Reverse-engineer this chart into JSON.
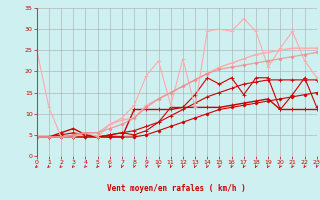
{
  "xlabel": "Vent moyen/en rafales ( km/h )",
  "xlim": [
    0,
    23
  ],
  "ylim": [
    0,
    35
  ],
  "background_color": "#cff0f0",
  "grid_color": "#aaaaaa",
  "tick_label_color": "#cc0000",
  "axis_label_color": "#cc0000",
  "series": [
    {
      "x": [
        0,
        1,
        2,
        3,
        4,
        5,
        6,
        7,
        8,
        9,
        10,
        11,
        12,
        13,
        14,
        15,
        16,
        17,
        18,
        19,
        20,
        21,
        22,
        23
      ],
      "y": [
        4.5,
        4.5,
        4.5,
        4.5,
        4.5,
        4.5,
        4.5,
        4.5,
        4.5,
        5.0,
        6.0,
        7.0,
        8.0,
        9.0,
        10.0,
        11.0,
        11.5,
        12.0,
        12.5,
        13.0,
        13.5,
        14.0,
        14.5,
        15.0
      ],
      "color": "#cc0000",
      "alpha": 1.0,
      "linewidth": 0.8,
      "marker": "D",
      "markersize": 1.5
    },
    {
      "x": [
        0,
        1,
        2,
        3,
        4,
        5,
        6,
        7,
        8,
        9,
        10,
        11,
        12,
        13,
        14,
        15,
        16,
        17,
        18,
        19,
        20,
        21,
        22,
        23
      ],
      "y": [
        4.5,
        4.5,
        4.5,
        4.5,
        4.5,
        4.5,
        5.0,
        5.5,
        6.0,
        7.0,
        8.0,
        9.5,
        11.0,
        12.5,
        14.0,
        15.0,
        16.0,
        17.0,
        17.5,
        18.0,
        18.0,
        18.0,
        18.0,
        18.0
      ],
      "color": "#cc0000",
      "alpha": 1.0,
      "linewidth": 0.8,
      "marker": "+",
      "markersize": 3
    },
    {
      "x": [
        0,
        1,
        2,
        3,
        4,
        5,
        6,
        7,
        8,
        9,
        10,
        11,
        12,
        13,
        14,
        15,
        16,
        17,
        18,
        19,
        20,
        21,
        22,
        23
      ],
      "y": [
        4.5,
        4.5,
        5.0,
        5.5,
        5.0,
        4.5,
        5.0,
        5.5,
        5.0,
        6.0,
        8.0,
        11.5,
        11.5,
        14.5,
        18.5,
        17.0,
        18.5,
        14.5,
        18.5,
        18.5,
        11.0,
        14.5,
        18.5,
        11.5
      ],
      "color": "#cc0000",
      "alpha": 1.0,
      "linewidth": 0.8,
      "marker": "+",
      "markersize": 3
    },
    {
      "x": [
        0,
        1,
        2,
        3,
        4,
        5,
        6,
        7,
        8,
        9,
        10,
        11,
        12,
        13,
        14,
        15,
        16,
        17,
        18,
        19,
        20,
        21,
        22,
        23
      ],
      "y": [
        4.5,
        4.5,
        5.5,
        6.5,
        5.0,
        4.5,
        4.5,
        4.5,
        11.0,
        11.0,
        11.0,
        11.0,
        11.5,
        11.5,
        11.5,
        11.5,
        12.0,
        12.5,
        13.0,
        13.5,
        11.0,
        11.0,
        11.0,
        11.0
      ],
      "color": "#cc0000",
      "alpha": 1.0,
      "linewidth": 1.0,
      "marker": "+",
      "markersize": 3
    },
    {
      "x": [
        0,
        1,
        2,
        3,
        4,
        5,
        6,
        7,
        8,
        9,
        10,
        11,
        12,
        13,
        14,
        15,
        16,
        17,
        18,
        19,
        20,
        21,
        22,
        23
      ],
      "y": [
        25.0,
        11.5,
        4.5,
        4.5,
        5.5,
        4.5,
        7.5,
        9.0,
        12.0,
        19.0,
        22.5,
        12.0,
        23.0,
        11.5,
        29.5,
        30.0,
        29.5,
        32.5,
        29.5,
        21.0,
        25.5,
        29.5,
        22.5,
        18.5
      ],
      "color": "#ffaaaa",
      "alpha": 1.0,
      "linewidth": 0.8,
      "marker": "+",
      "markersize": 3
    },
    {
      "x": [
        0,
        1,
        2,
        3,
        4,
        5,
        6,
        7,
        8,
        9,
        10,
        11,
        12,
        13,
        14,
        15,
        16,
        17,
        18,
        19,
        20,
        21,
        22,
        23
      ],
      "y": [
        4.5,
        4.5,
        4.5,
        5.0,
        5.5,
        5.5,
        7.5,
        8.5,
        9.0,
        12.0,
        13.5,
        15.0,
        16.5,
        18.0,
        19.5,
        21.0,
        22.0,
        23.0,
        24.0,
        24.5,
        25.0,
        25.5,
        25.5,
        25.5
      ],
      "color": "#ffaaaa",
      "alpha": 1.0,
      "linewidth": 1.0,
      "marker": "+",
      "markersize": 3
    },
    {
      "x": [
        0,
        1,
        2,
        3,
        4,
        5,
        6,
        7,
        8,
        9,
        10,
        11,
        12,
        13,
        14,
        15,
        16,
        17,
        18,
        19,
        20,
        21,
        22,
        23
      ],
      "y": [
        4.5,
        4.5,
        4.5,
        5.0,
        5.5,
        5.5,
        6.5,
        7.5,
        9.0,
        11.5,
        13.5,
        15.0,
        16.5,
        18.0,
        19.5,
        20.5,
        21.0,
        21.5,
        22.0,
        22.5,
        23.0,
        23.5,
        24.0,
        24.5
      ],
      "color": "#ee8888",
      "alpha": 0.7,
      "linewidth": 1.0,
      "marker": "D",
      "markersize": 1.5
    }
  ],
  "xticks": [
    0,
    1,
    2,
    3,
    4,
    5,
    6,
    7,
    8,
    9,
    10,
    11,
    12,
    13,
    14,
    15,
    16,
    17,
    18,
    19,
    20,
    21,
    22,
    23
  ],
  "yticks": [
    0,
    5,
    10,
    15,
    20,
    25,
    30,
    35
  ]
}
